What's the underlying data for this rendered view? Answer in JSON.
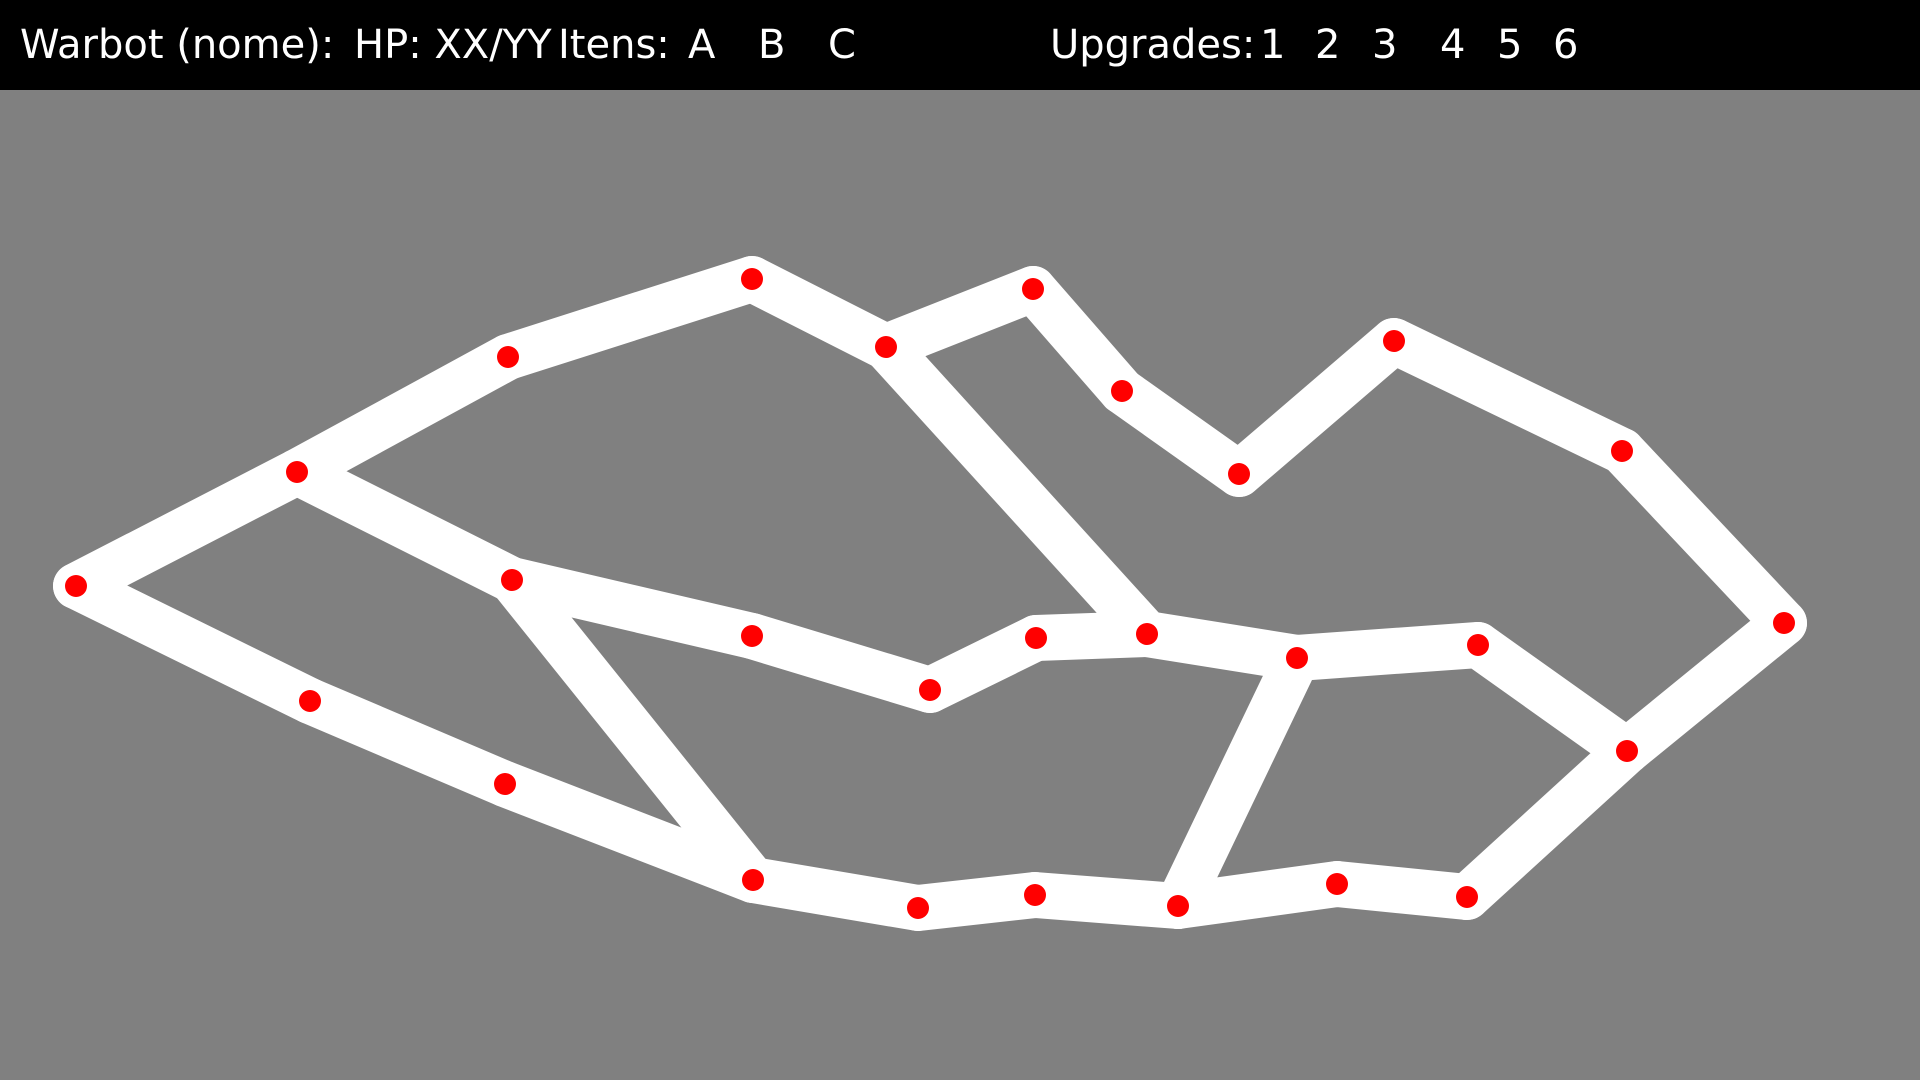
{
  "hud": {
    "warbot_label": "Warbot (nome):",
    "hp_label": "HP: XX/YY",
    "items_label": "Itens:",
    "items": [
      "A",
      "B",
      "C"
    ],
    "upgrades_label": "Upgrades:",
    "upgrades": [
      "1",
      "2",
      "3",
      "4",
      "5",
      "6"
    ]
  },
  "colors": {
    "hud_background": "#000000",
    "hud_text": "#ffffff",
    "board_background": "#808080",
    "path": "#ffffff",
    "node": "#ff0000"
  }
}
